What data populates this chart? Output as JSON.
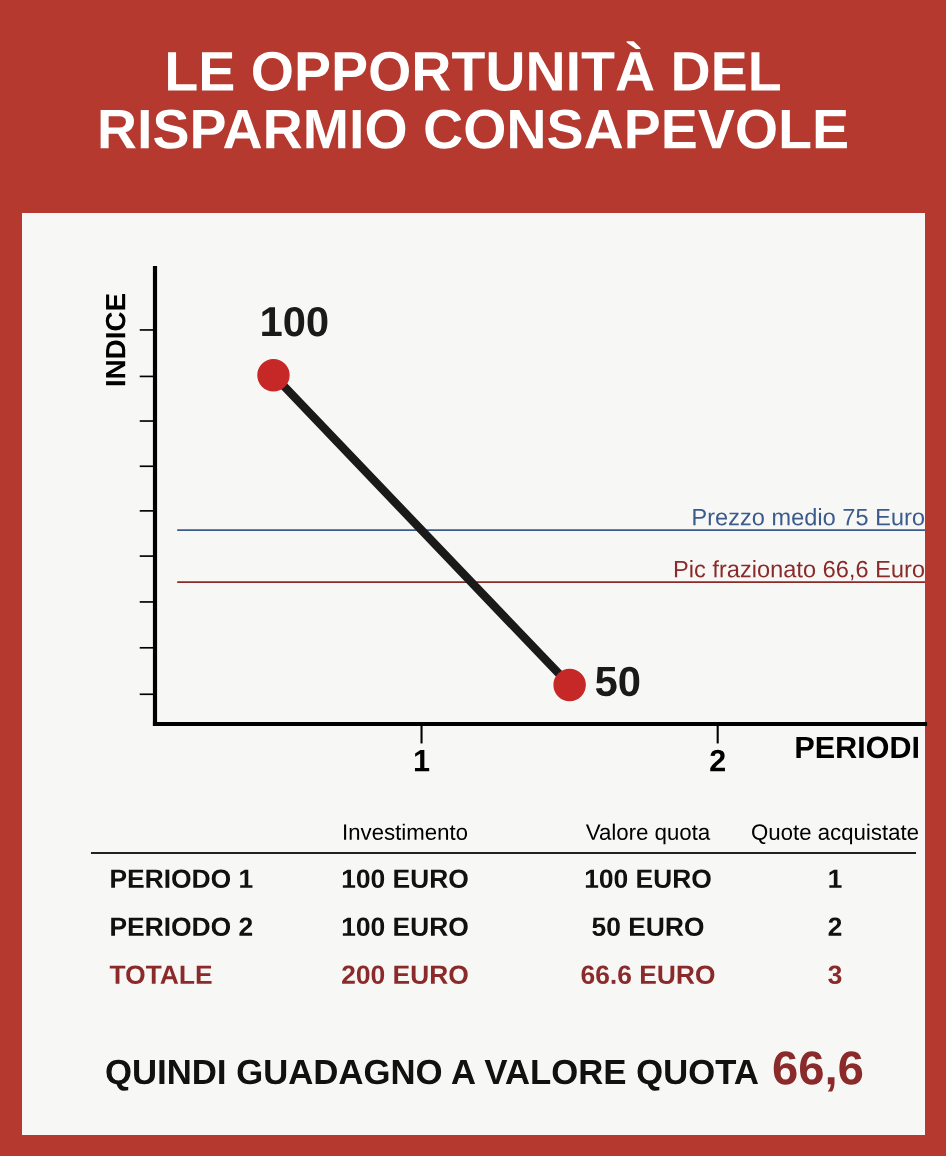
{
  "chart_data": {
    "type": "line",
    "title": "LE OPPORTUNITÀ DEL\nRISPARMIO CONSAPEVOLE",
    "xlabel": "PERIODI",
    "ylabel": "INDICE",
    "x": [
      0.5,
      1.5
    ],
    "series": [
      {
        "color": "#1a1a1a",
        "colors": [
          "#c62828",
          "#c62828"
        ],
        "values": [
          100,
          50
        ],
        "value_labels": [
          "100",
          "50"
        ]
      }
    ],
    "marker": "circle",
    "line_style": "solid",
    "xlim": [
      0.1,
      2.7
    ],
    "xticks": [
      1,
      2
    ],
    "ylim": [
      43.7,
      117.3
    ],
    "yticks": [
      {
        "value": 48.5,
        "label": null
      },
      {
        "value": 56,
        "label": null
      },
      {
        "value": 63.4,
        "label": null
      },
      {
        "value": 70.8,
        "label": null
      },
      {
        "value": 78.1,
        "label": null
      },
      {
        "value": 85.3,
        "label": null
      },
      {
        "value": 92.6,
        "label": null
      },
      {
        "value": 99.8,
        "label": null
      },
      {
        "value": 107.3,
        "label": null
      }
    ],
    "ref_lines": [
      {
        "axis": "y",
        "value": 75,
        "label": "Prezzo medio 75 Euro",
        "color": "#3b5b8c"
      },
      {
        "axis": "y",
        "value": 66.6,
        "label": "Pic frazionato 66,6 Euro",
        "color": "#8b2a2a"
      }
    ],
    "grid": false,
    "annotations": [
      "Investimento",
      "Valore quota",
      "Quote acquistate",
      "PERIODO 1",
      "100 EURO",
      "100 EURO",
      "1",
      "PERIODO 2",
      "100 EURO",
      "50 EURO",
      "2",
      "TOTALE",
      "200 EURO",
      "66.6 EURO",
      "3",
      "QUINDI GUADAGNO A VALORE QUOTA",
      "66,6"
    ]
  }
}
